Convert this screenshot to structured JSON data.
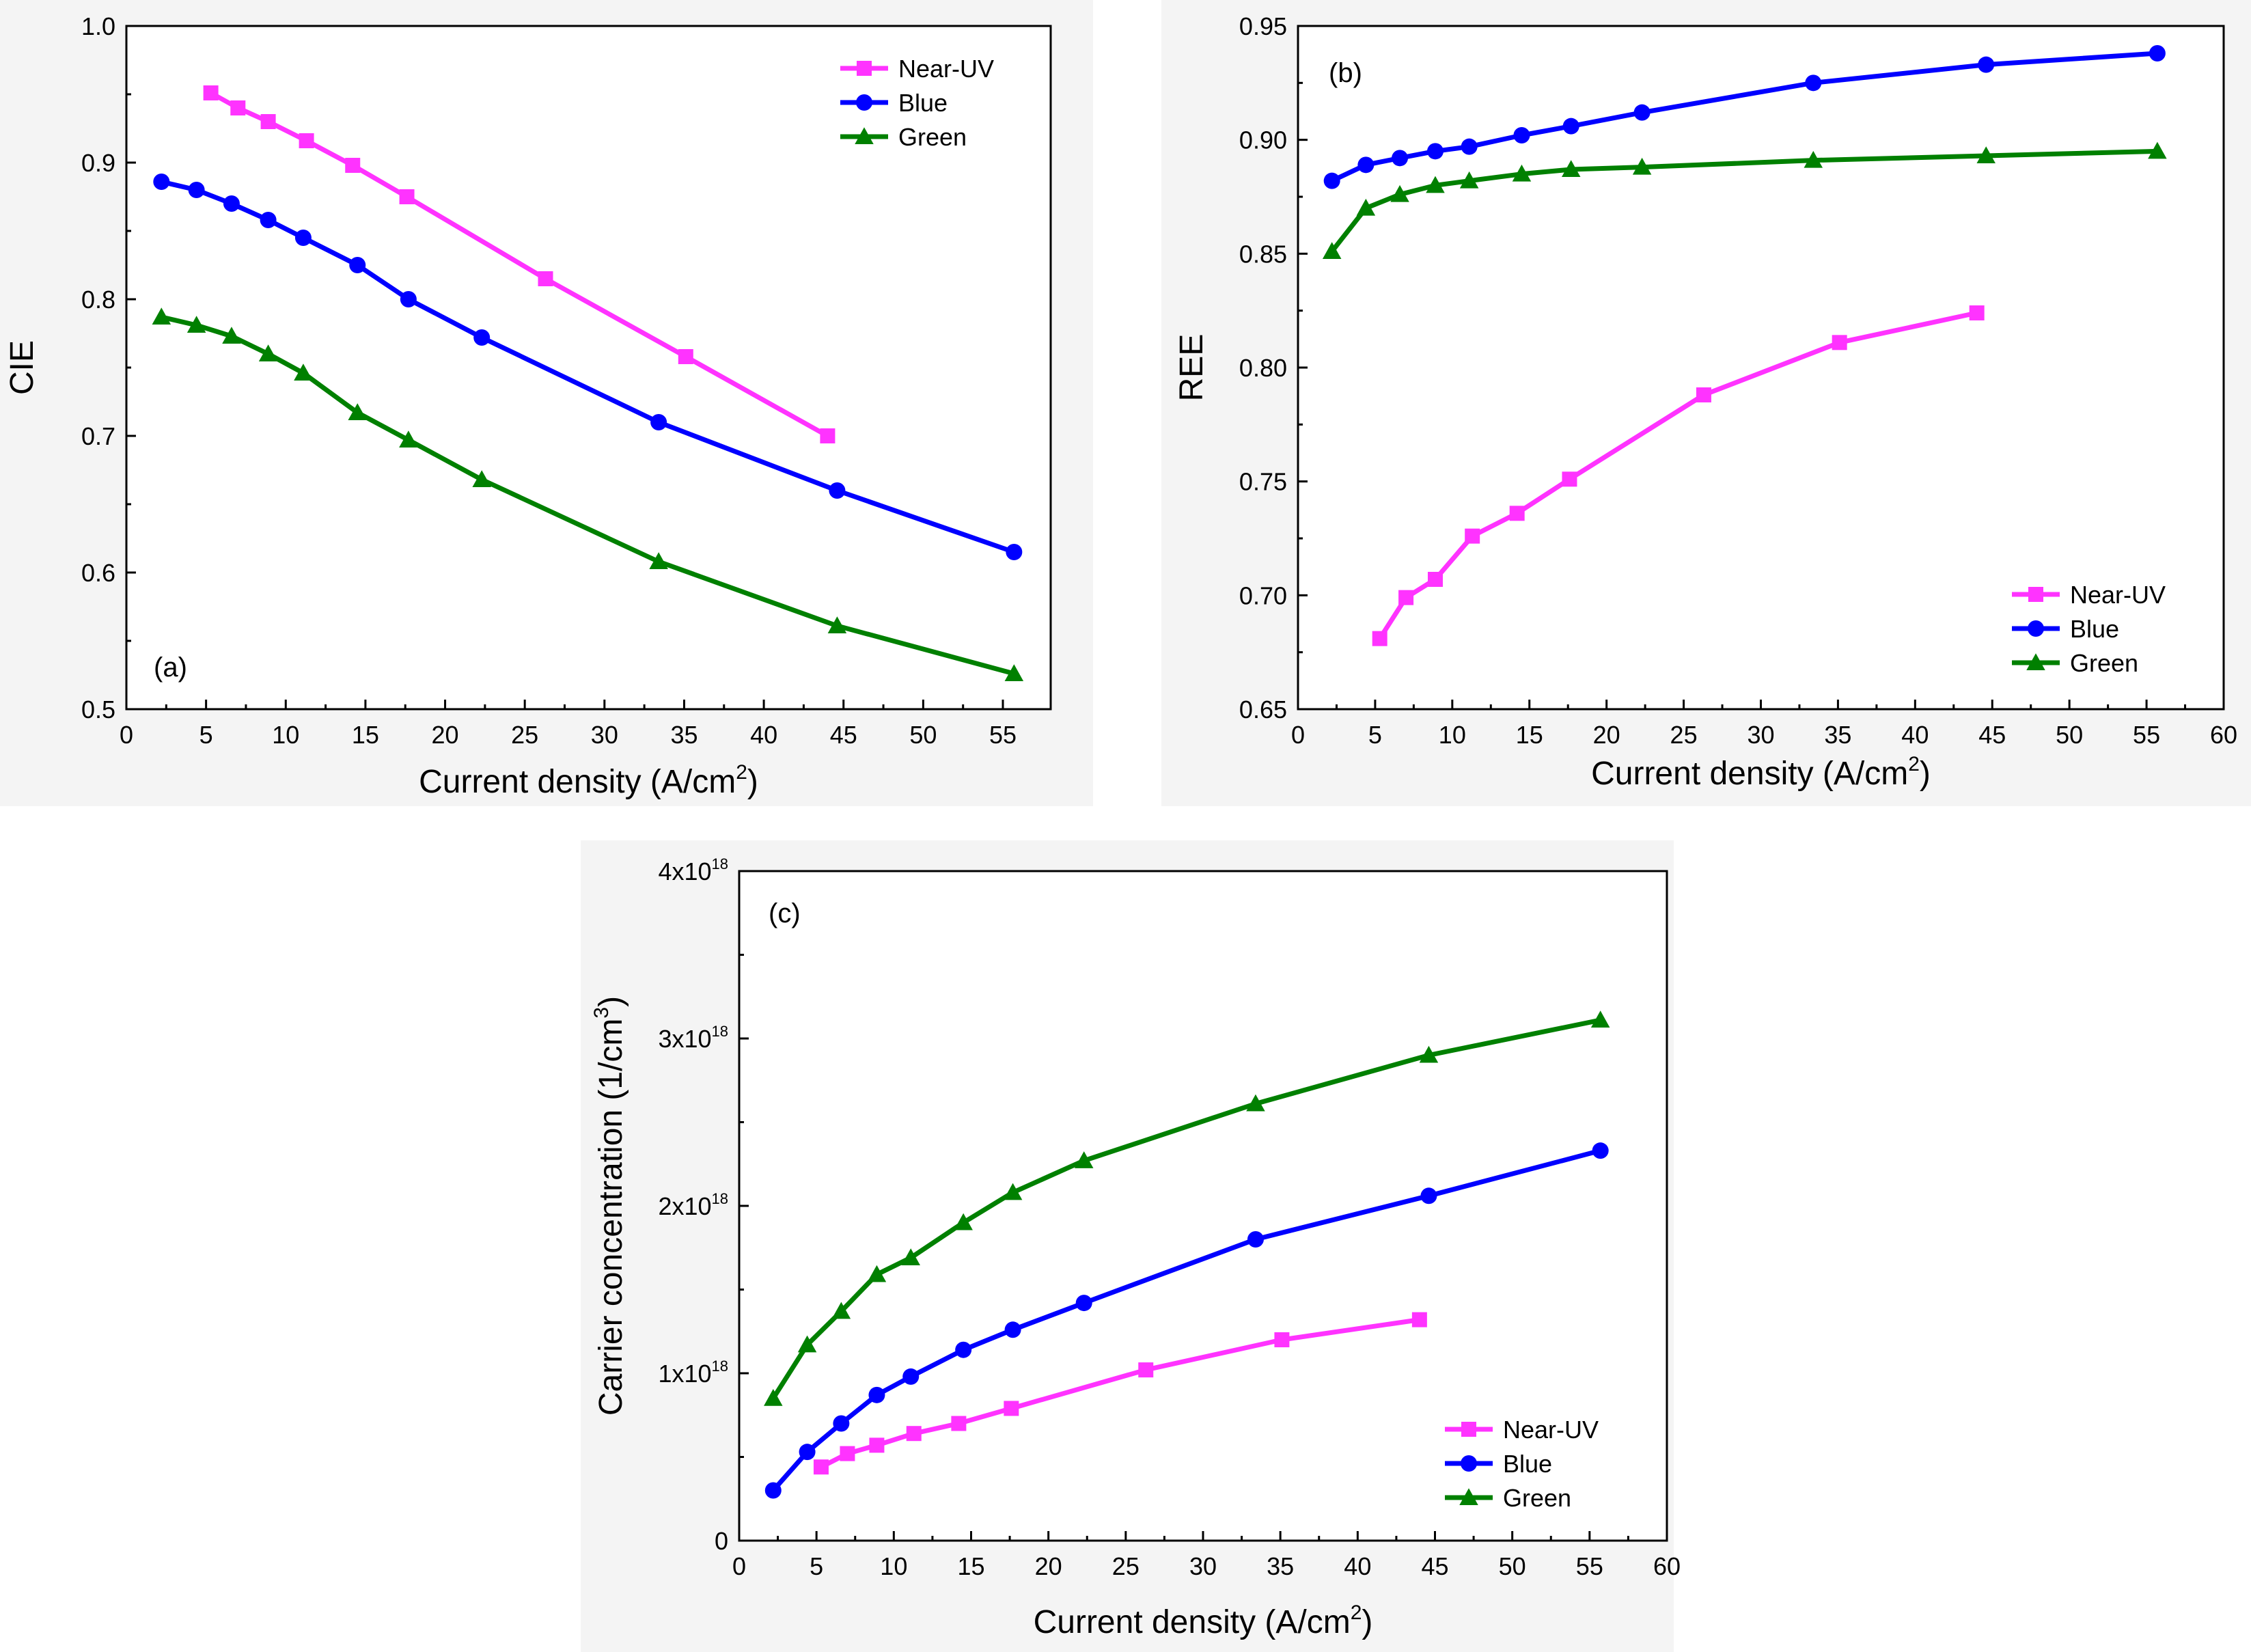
{
  "chart_data": [
    {
      "type": "line",
      "panel_label": "(a)",
      "xlabel": "Current density (A/cm",
      "xlabel_sup": "2",
      "xlabel_end": ")",
      "ylabel": "CIE",
      "xlim": [
        0,
        58
      ],
      "ylim": [
        0.5,
        1.0
      ],
      "xticks": [
        0,
        5,
        10,
        15,
        20,
        25,
        30,
        35,
        40,
        45,
        50,
        55
      ],
      "xtick_labels": [
        "0",
        "5",
        "10",
        "15",
        "20",
        "25",
        "30",
        "35",
        "40",
        "45",
        "50",
        "55"
      ],
      "yticks": [
        0.5,
        0.6,
        0.7,
        0.8,
        0.9,
        1.0
      ],
      "ytick_labels": [
        "0.5",
        "0.6",
        "0.7",
        "0.8",
        "0.9",
        "1.0"
      ],
      "legend_position": "top-right",
      "series": [
        {
          "name": "Near-UV",
          "color": "#ff33ff",
          "marker": "square",
          "x": [
            5.3,
            7.0,
            8.9,
            11.3,
            14.2,
            17.6,
            26.3,
            35.1,
            44.0
          ],
          "y": [
            0.951,
            0.94,
            0.93,
            0.916,
            0.898,
            0.875,
            0.815,
            0.758,
            0.7
          ]
        },
        {
          "name": "Blue",
          "color": "#0000ff",
          "marker": "circle",
          "x": [
            2.2,
            4.4,
            6.6,
            8.9,
            11.1,
            14.5,
            17.7,
            22.3,
            33.4,
            44.6,
            55.7
          ],
          "y": [
            0.886,
            0.88,
            0.87,
            0.858,
            0.845,
            0.825,
            0.8,
            0.772,
            0.71,
            0.66,
            0.615
          ]
        },
        {
          "name": "Green",
          "color": "#008000",
          "marker": "triangle",
          "x": [
            2.2,
            4.4,
            6.6,
            8.9,
            11.1,
            14.5,
            17.7,
            22.3,
            33.4,
            44.6,
            55.7
          ],
          "y": [
            0.787,
            0.781,
            0.773,
            0.76,
            0.746,
            0.717,
            0.697,
            0.668,
            0.608,
            0.561,
            0.526
          ]
        }
      ]
    },
    {
      "type": "line",
      "panel_label": "(b)",
      "xlabel": "Current density (A/cm",
      "xlabel_sup": "2",
      "xlabel_end": ")",
      "ylabel": "REE",
      "xlim": [
        0,
        60
      ],
      "ylim": [
        0.65,
        0.95
      ],
      "xticks": [
        0,
        5,
        10,
        15,
        20,
        25,
        30,
        35,
        40,
        45,
        50,
        55,
        60
      ],
      "xtick_labels": [
        "0",
        "5",
        "10",
        "15",
        "20",
        "25",
        "30",
        "35",
        "40",
        "45",
        "50",
        "55",
        "60"
      ],
      "yticks": [
        0.65,
        0.7,
        0.75,
        0.8,
        0.85,
        0.9,
        0.95
      ],
      "ytick_labels": [
        "0.65",
        "0.70",
        "0.75",
        "0.80",
        "0.85",
        "0.90",
        "0.95"
      ],
      "legend_position": "bottom-right",
      "series": [
        {
          "name": "Near-UV",
          "color": "#ff33ff",
          "marker": "square",
          "x": [
            5.3,
            7.0,
            8.9,
            11.3,
            14.2,
            17.6,
            26.3,
            35.1,
            44.0
          ],
          "y": [
            0.681,
            0.699,
            0.707,
            0.726,
            0.736,
            0.751,
            0.788,
            0.811,
            0.824
          ]
        },
        {
          "name": "Blue",
          "color": "#0000ff",
          "marker": "circle",
          "x": [
            2.2,
            4.4,
            6.6,
            8.9,
            11.1,
            14.5,
            17.7,
            22.3,
            33.4,
            44.6,
            55.7
          ],
          "y": [
            0.882,
            0.889,
            0.892,
            0.895,
            0.897,
            0.902,
            0.906,
            0.912,
            0.925,
            0.933,
            0.938
          ]
        },
        {
          "name": "Green",
          "color": "#008000",
          "marker": "triangle",
          "x": [
            2.2,
            4.4,
            6.6,
            8.9,
            11.1,
            14.5,
            17.7,
            22.3,
            33.4,
            44.6,
            55.7
          ],
          "y": [
            0.851,
            0.87,
            0.876,
            0.88,
            0.882,
            0.885,
            0.887,
            0.888,
            0.891,
            0.893,
            0.895
          ]
        }
      ]
    },
    {
      "type": "line",
      "panel_label": "(c)",
      "xlabel": "Current density (A/cm",
      "xlabel_sup": "2",
      "xlabel_end": ")",
      "ylabel": "Carrier concentration (1/cm",
      "ylabel_sup": "3",
      "ylabel_end": ")",
      "xlim": [
        0,
        60
      ],
      "ylim": [
        0,
        4
      ],
      "y_scale_note": "values in units of 1e18",
      "xticks": [
        0,
        5,
        10,
        15,
        20,
        25,
        30,
        35,
        40,
        45,
        50,
        55,
        60
      ],
      "xtick_labels": [
        "0",
        "5",
        "10",
        "15",
        "20",
        "25",
        "30",
        "35",
        "40",
        "45",
        "50",
        "55",
        "60"
      ],
      "yticks": [
        0,
        1,
        2,
        3,
        4
      ],
      "ytick_labels": [
        {
          "base": "0",
          "exp": ""
        },
        {
          "base": "1x10",
          "exp": "18"
        },
        {
          "base": "2x10",
          "exp": "18"
        },
        {
          "base": "3x10",
          "exp": "18"
        },
        {
          "base": "4x10",
          "exp": "18"
        }
      ],
      "legend_position": "bottom-right",
      "series": [
        {
          "name": "Near-UV",
          "color": "#ff33ff",
          "marker": "square",
          "x": [
            5.3,
            7.0,
            8.9,
            11.3,
            14.2,
            17.6,
            26.3,
            35.1,
            44.0
          ],
          "y": [
            0.44,
            0.52,
            0.57,
            0.64,
            0.7,
            0.79,
            1.02,
            1.2,
            1.32
          ]
        },
        {
          "name": "Blue",
          "color": "#0000ff",
          "marker": "circle",
          "x": [
            2.2,
            4.4,
            6.6,
            8.9,
            11.1,
            14.5,
            17.7,
            22.3,
            33.4,
            44.6,
            55.7
          ],
          "y": [
            0.3,
            0.53,
            0.7,
            0.87,
            0.98,
            1.14,
            1.26,
            1.42,
            1.8,
            2.06,
            2.33
          ]
        },
        {
          "name": "Green",
          "color": "#008000",
          "marker": "triangle",
          "x": [
            2.2,
            4.4,
            6.6,
            8.9,
            11.1,
            14.5,
            17.7,
            22.3,
            33.4,
            44.6,
            55.7
          ],
          "y": [
            0.85,
            1.17,
            1.37,
            1.59,
            1.69,
            1.9,
            2.08,
            2.27,
            2.61,
            2.9,
            3.11
          ]
        }
      ]
    }
  ]
}
